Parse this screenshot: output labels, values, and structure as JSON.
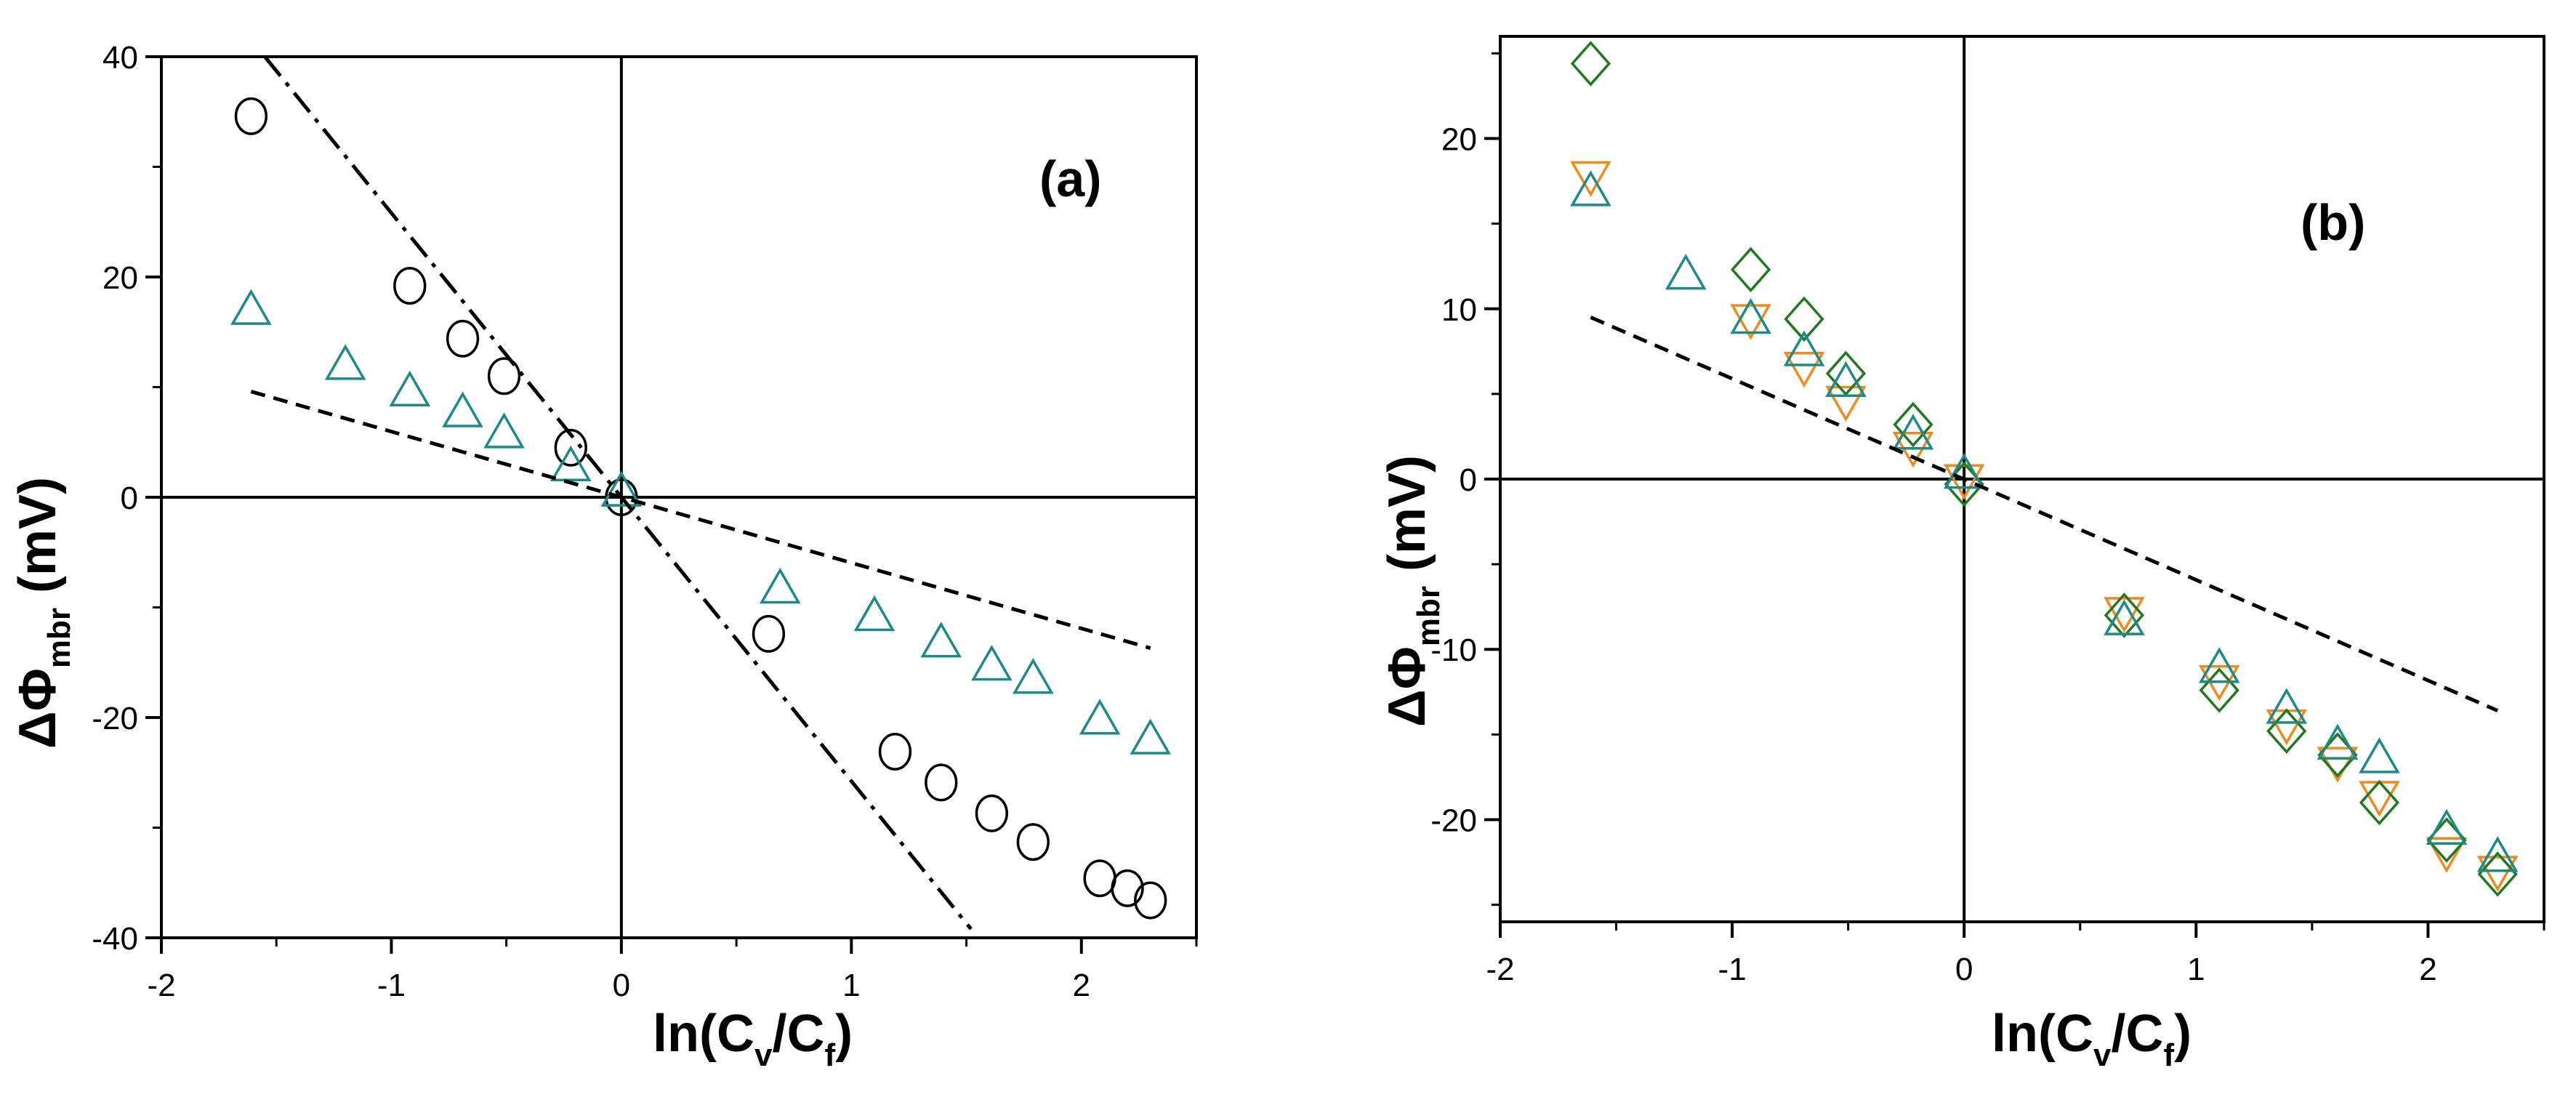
{
  "chart_data": [
    {
      "type": "scatter",
      "panel_label": "(a)",
      "xlabel": {
        "main": "ln(C",
        "sub1": "v",
        "mid": "/C",
        "sub2": "f",
        "end": ")"
      },
      "ylabel": {
        "main": "ΔΦ",
        "sub": "mbr",
        "end": " (mV)"
      },
      "xlim": [
        -2,
        2.5
      ],
      "ylim": [
        -40,
        40
      ],
      "xticks": [
        -2,
        -1,
        0,
        1,
        2
      ],
      "xtick_labels": [
        "-2",
        "-1",
        "0",
        "1",
        "2"
      ],
      "yticks": [
        -40,
        -20,
        0,
        20,
        40
      ],
      "ytick_labels": [
        "-40",
        "-20",
        "0",
        "20",
        "40"
      ],
      "zero_lines": true,
      "series": [
        {
          "name": "circles",
          "marker": "circle",
          "color": "#000000",
          "points": [
            [
              -1.61,
              34.6
            ],
            [
              -0.92,
              19.2
            ],
            [
              -0.69,
              14.4
            ],
            [
              -0.51,
              11.0
            ],
            [
              -0.22,
              4.5
            ],
            [
              0.0,
              0.0
            ],
            [
              0.64,
              -12.4
            ],
            [
              1.19,
              -23.1
            ],
            [
              1.39,
              -25.9
            ],
            [
              1.61,
              -28.7
            ],
            [
              1.79,
              -31.3
            ],
            [
              2.08,
              -34.6
            ],
            [
              2.2,
              -35.5
            ],
            [
              2.3,
              -36.6
            ]
          ]
        },
        {
          "name": "triangles",
          "marker": "triangle-up",
          "color": "#1a8a8a",
          "points": [
            [
              -1.61,
              17.0
            ],
            [
              -1.2,
              12.0
            ],
            [
              -0.92,
              9.6
            ],
            [
              -0.69,
              7.7
            ],
            [
              -0.51,
              5.8
            ],
            [
              -0.22,
              2.8
            ],
            [
              0.0,
              0.5
            ],
            [
              0.69,
              -8.3
            ],
            [
              1.1,
              -10.8
            ],
            [
              1.39,
              -13.2
            ],
            [
              1.61,
              -15.3
            ],
            [
              1.79,
              -16.5
            ],
            [
              2.08,
              -20.2
            ],
            [
              2.3,
              -22.0
            ]
          ]
        },
        {
          "name": "dashed fit",
          "line": "dashed",
          "color": "#000000",
          "points": [
            [
              -1.61,
              9.6
            ],
            [
              2.3,
              -13.7
            ]
          ]
        },
        {
          "name": "dash-dot fit",
          "line": "dashdot",
          "color": "#000000",
          "points": [
            [
              -1.55,
              40.0
            ],
            [
              1.52,
              -39.2
            ]
          ]
        }
      ]
    },
    {
      "type": "scatter",
      "panel_label": "(b)",
      "xlabel": {
        "main": "ln(C",
        "sub1": "v",
        "mid": "/C",
        "sub2": "f",
        "end": ")"
      },
      "ylabel": {
        "main": "ΔΦ",
        "sub": "mbr",
        "end": " (mV)"
      },
      "xlim": [
        -2,
        2.5
      ],
      "ylim": [
        -26,
        26
      ],
      "xticks": [
        -2,
        -1,
        0,
        1,
        2
      ],
      "xtick_labels": [
        "-2",
        "-1",
        "0",
        "1",
        "2"
      ],
      "yticks": [
        -20,
        -10,
        0,
        10,
        20
      ],
      "ytick_labels": [
        "-20",
        "-10",
        "0",
        "10",
        "20"
      ],
      "zero_lines": true,
      "series": [
        {
          "name": "inverted triangles",
          "marker": "triangle-down",
          "color": "#f08a1c",
          "points": [
            [
              -1.61,
              17.8
            ],
            [
              -0.92,
              9.4
            ],
            [
              -0.69,
              6.6
            ],
            [
              -0.51,
              4.6
            ],
            [
              -0.22,
              1.9
            ],
            [
              0.0,
              0.0
            ],
            [
              0.69,
              -7.8
            ],
            [
              1.1,
              -11.8
            ],
            [
              1.39,
              -14.4
            ],
            [
              1.61,
              -16.6
            ],
            [
              1.79,
              -18.6
            ],
            [
              2.08,
              -21.9
            ],
            [
              2.3,
              -23.0
            ]
          ]
        },
        {
          "name": "diamonds",
          "marker": "diamond",
          "color": "#1f7a1f",
          "points": [
            [
              -1.61,
              24.4
            ],
            [
              -0.92,
              12.3
            ],
            [
              -0.69,
              9.4
            ],
            [
              -0.51,
              6.2
            ],
            [
              -0.22,
              3.2
            ],
            [
              0.0,
              -0.3
            ],
            [
              0.69,
              -8.0
            ],
            [
              1.1,
              -12.4
            ],
            [
              1.39,
              -14.8
            ],
            [
              1.61,
              -16.2
            ],
            [
              1.79,
              -19.0
            ],
            [
              2.08,
              -21.2
            ],
            [
              2.3,
              -23.2
            ]
          ]
        },
        {
          "name": "triangles",
          "marker": "triangle-up",
          "color": "#1a8a8a",
          "points": [
            [
              -1.61,
              16.9
            ],
            [
              -1.2,
              12.0
            ],
            [
              -0.92,
              9.4
            ],
            [
              -0.69,
              7.5
            ],
            [
              -0.51,
              5.7
            ],
            [
              -0.22,
              2.6
            ],
            [
              0.0,
              0.3
            ],
            [
              0.69,
              -8.3
            ],
            [
              1.1,
              -11.1
            ],
            [
              1.39,
              -13.5
            ],
            [
              1.61,
              -15.6
            ],
            [
              1.79,
              -16.4
            ],
            [
              2.08,
              -20.6
            ],
            [
              2.3,
              -22.2
            ]
          ]
        },
        {
          "name": "dashed fit",
          "line": "dashed",
          "color": "#000000",
          "points": [
            [
              -1.61,
              9.5
            ],
            [
              2.3,
              -13.6
            ]
          ]
        }
      ]
    }
  ]
}
